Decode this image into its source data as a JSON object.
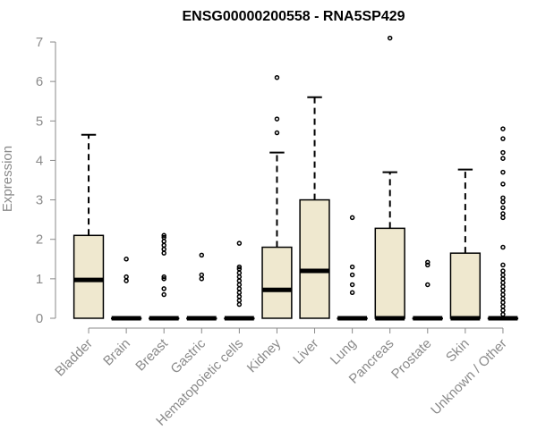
{
  "chart_data": {
    "type": "boxplot",
    "title": "ENSG00000200558 - RNA5SP429",
    "xlabel": "",
    "ylabel": "Expression",
    "ylim": [
      0,
      7
    ],
    "yticks": [
      0,
      1,
      2,
      3,
      4,
      5,
      6,
      7
    ],
    "box_color": "#efe8cf",
    "categories": [
      "Bladder",
      "Brain",
      "Breast",
      "Gastric",
      "Hematopoietic cells",
      "Kidney",
      "Liver",
      "Lung",
      "Pancreas",
      "Prostate",
      "Skin",
      "Unknown / Other"
    ],
    "boxes": [
      {
        "q1": 0.0,
        "median": 0.97,
        "q3": 2.1,
        "whisker_low": 0.0,
        "whisker_high": 4.65,
        "outliers": []
      },
      {
        "q1": 0.0,
        "median": 0.0,
        "q3": 0.0,
        "whisker_low": 0.0,
        "whisker_high": 0.0,
        "outliers": [
          0.95,
          1.05,
          1.5
        ]
      },
      {
        "q1": 0.0,
        "median": 0.0,
        "q3": 0.0,
        "whisker_low": 0.0,
        "whisker_high": 0.0,
        "outliers": [
          0.6,
          0.75,
          1.0,
          1.05,
          1.65,
          1.75,
          1.85,
          1.95,
          2.05,
          2.1
        ]
      },
      {
        "q1": 0.0,
        "median": 0.0,
        "q3": 0.0,
        "whisker_low": 0.0,
        "whisker_high": 0.0,
        "outliers": [
          1.0,
          1.1,
          1.6
        ]
      },
      {
        "q1": 0.0,
        "median": 0.0,
        "q3": 0.0,
        "whisker_low": 0.0,
        "whisker_high": 0.0,
        "outliers": [
          0.35,
          0.45,
          0.55,
          0.65,
          0.75,
          0.85,
          0.95,
          1.05,
          1.15,
          1.25,
          1.3,
          1.9
        ]
      },
      {
        "q1": 0.0,
        "median": 0.72,
        "q3": 1.8,
        "whisker_low": 0.0,
        "whisker_high": 4.2,
        "outliers": [
          4.7,
          5.05,
          6.1
        ]
      },
      {
        "q1": 0.0,
        "median": 1.2,
        "q3": 3.0,
        "whisker_low": 0.0,
        "whisker_high": 5.6,
        "outliers": []
      },
      {
        "q1": 0.0,
        "median": 0.0,
        "q3": 0.0,
        "whisker_low": 0.0,
        "whisker_high": 0.0,
        "outliers": [
          0.65,
          0.85,
          1.1,
          1.3,
          2.55
        ]
      },
      {
        "q1": 0.0,
        "median": 0.0,
        "q3": 2.28,
        "whisker_low": 0.0,
        "whisker_high": 3.7,
        "outliers": [
          7.1
        ]
      },
      {
        "q1": 0.0,
        "median": 0.0,
        "q3": 0.0,
        "whisker_low": 0.0,
        "whisker_high": 0.0,
        "outliers": [
          0.85,
          1.35,
          1.42
        ]
      },
      {
        "q1": 0.0,
        "median": 0.0,
        "q3": 1.65,
        "whisker_low": 0.0,
        "whisker_high": 3.77,
        "outliers": []
      },
      {
        "q1": 0.0,
        "median": 0.0,
        "q3": 0.0,
        "whisker_low": 0.0,
        "whisker_high": 0.0,
        "outliers": [
          0.1,
          0.2,
          0.3,
          0.4,
          0.5,
          0.6,
          0.7,
          0.8,
          0.9,
          1.0,
          1.1,
          1.2,
          1.35,
          1.8,
          2.55,
          2.65,
          2.8,
          2.95,
          3.05,
          3.4,
          3.7,
          4.05,
          4.2,
          4.55,
          4.8
        ]
      }
    ]
  }
}
